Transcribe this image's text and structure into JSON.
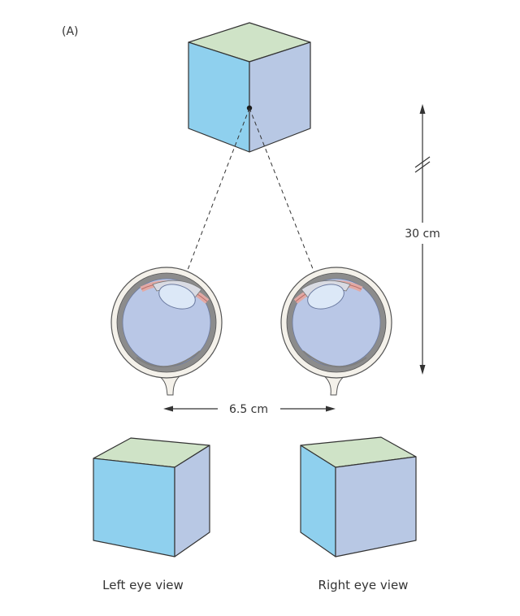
{
  "figure": {
    "panel_label": "(A)",
    "distance_label": "30 cm",
    "separation_label": "6.5 cm",
    "left_caption": "Left eye view",
    "right_caption": "Right eye view"
  },
  "colors": {
    "cube_top": "#cfe3c7",
    "cube_left_face": "#8fd0ee",
    "cube_right_face": "#b8c8e4",
    "eyeball_fill": "#b9c7e6",
    "lens_fill": "#dce8f7",
    "iris_muscle": "#e2a9a4",
    "sclera_gray": "#8c8c8c"
  }
}
